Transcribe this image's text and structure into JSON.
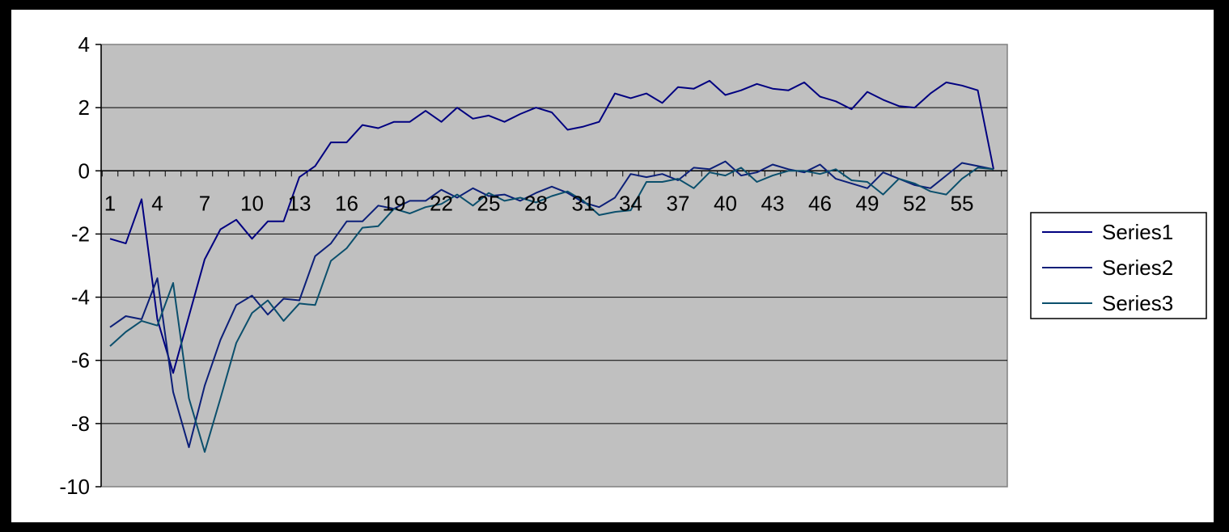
{
  "chart_data": {
    "type": "line",
    "title": "",
    "xlabel": "",
    "ylabel": "",
    "ylim": [
      -10,
      4
    ],
    "yticks": [
      -10,
      -8,
      -6,
      -4,
      -2,
      0,
      2,
      4
    ],
    "x_tick_every": 3,
    "grid": "horizontal",
    "legend_position": "right",
    "colors": {
      "plot_background": "#c0c0c0",
      "chart_background": "#ffffff",
      "frame": "#000000",
      "gridline": "#000000"
    },
    "x": [
      1,
      2,
      3,
      4,
      5,
      6,
      7,
      8,
      9,
      10,
      11,
      12,
      13,
      14,
      15,
      16,
      17,
      18,
      19,
      20,
      21,
      22,
      23,
      24,
      25,
      26,
      27,
      28,
      29,
      30,
      31,
      32,
      33,
      34,
      35,
      36,
      37,
      38,
      39,
      40,
      41,
      42,
      43,
      44,
      45,
      46,
      47,
      48,
      49,
      50,
      51,
      52,
      53,
      54,
      55,
      56,
      57
    ],
    "series": [
      {
        "name": "Series1",
        "color": "#000080",
        "values": [
          -2.15,
          -2.3,
          -0.9,
          -4.7,
          -6.4,
          -4.6,
          -2.8,
          -1.85,
          -1.55,
          -2.15,
          -1.6,
          -1.6,
          -0.2,
          0.15,
          0.9,
          0.9,
          1.45,
          1.35,
          1.55,
          1.55,
          1.9,
          1.55,
          2.0,
          1.65,
          1.75,
          1.55,
          1.8,
          2.0,
          1.85,
          1.3,
          1.4,
          1.55,
          2.45,
          2.3,
          2.45,
          2.15,
          2.65,
          2.6,
          2.85,
          2.4,
          2.55,
          2.75,
          2.6,
          2.55,
          2.8,
          2.35,
          2.2,
          1.95,
          2.5,
          2.25,
          2.05,
          2.0,
          2.45,
          2.8,
          2.7,
          2.55,
          0.05
        ]
      },
      {
        "name": "Series2",
        "color": "#0c1f78",
        "values": [
          -4.95,
          -4.6,
          -4.7,
          -3.4,
          -7.0,
          -8.75,
          -6.8,
          -5.35,
          -4.25,
          -3.95,
          -4.55,
          -4.05,
          -4.1,
          -2.7,
          -2.3,
          -1.6,
          -1.6,
          -1.1,
          -1.2,
          -0.95,
          -0.95,
          -0.6,
          -0.85,
          -0.55,
          -0.8,
          -0.75,
          -0.95,
          -0.7,
          -0.5,
          -0.7,
          -1.0,
          -1.15,
          -0.85,
          -0.1,
          -0.2,
          -0.1,
          -0.3,
          0.1,
          0.05,
          0.3,
          -0.15,
          -0.05,
          0.2,
          0.05,
          -0.05,
          0.2,
          -0.25,
          -0.4,
          -0.55,
          -0.05,
          -0.25,
          -0.45,
          -0.55,
          -0.15,
          0.25,
          0.15,
          0.05
        ]
      },
      {
        "name": "Series3",
        "color": "#0b4f6c",
        "values": [
          -5.55,
          -5.1,
          -4.75,
          -4.9,
          -3.55,
          -7.2,
          -8.9,
          -7.2,
          -5.45,
          -4.5,
          -4.1,
          -4.75,
          -4.2,
          -4.25,
          -2.85,
          -2.45,
          -1.8,
          -1.75,
          -1.2,
          -1.35,
          -1.15,
          -1.05,
          -0.75,
          -1.1,
          -0.7,
          -0.95,
          -0.85,
          -1.0,
          -0.8,
          -0.65,
          -0.95,
          -1.4,
          -1.3,
          -1.25,
          -0.35,
          -0.35,
          -0.25,
          -0.55,
          -0.05,
          -0.15,
          0.1,
          -0.35,
          -0.15,
          0.0,
          0.0,
          -0.1,
          0.05,
          -0.3,
          -0.35,
          -0.75,
          -0.25,
          -0.4,
          -0.65,
          -0.75,
          -0.25,
          0.1,
          0.05
        ]
      }
    ]
  }
}
